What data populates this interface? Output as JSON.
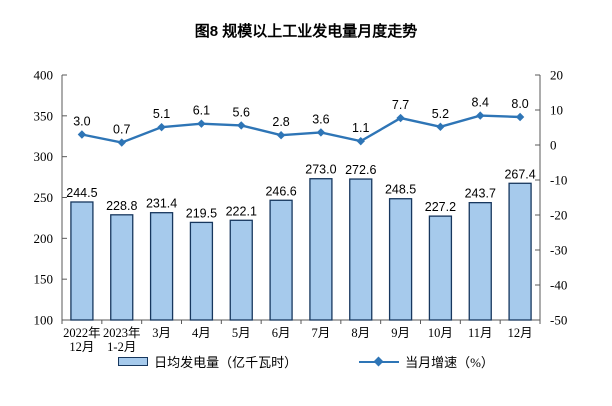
{
  "title": "图8 规模以上工业发电量月度走势",
  "chart_data": {
    "type": "combo-bar-line",
    "title": "图8 规模以上工业发电量月度走势",
    "categories": [
      "2022年\n12月",
      "2023年\n1-2月",
      "3月",
      "4月",
      "5月",
      "6月",
      "7月",
      "8月",
      "9月",
      "10月",
      "11月",
      "12月"
    ],
    "series": [
      {
        "name": "日均发电量（亿千瓦时）",
        "type": "bar",
        "axis": "left",
        "values": [
          244.5,
          228.8,
          231.4,
          219.5,
          222.1,
          246.6,
          273.0,
          272.6,
          248.5,
          227.2,
          243.7,
          267.4
        ]
      },
      {
        "name": "当月增速（%）",
        "type": "line",
        "axis": "right",
        "values": [
          3.0,
          0.7,
          5.1,
          6.1,
          5.6,
          2.8,
          3.6,
          1.1,
          7.7,
          5.2,
          8.4,
          8.0
        ]
      }
    ],
    "left_axis": {
      "min": 100,
      "max": 400,
      "step": 50,
      "ticks": [
        100,
        150,
        200,
        250,
        300,
        350,
        400
      ]
    },
    "right_axis": {
      "min": -50,
      "max": 20,
      "step": 10,
      "ticks": [
        -50,
        -40,
        -30,
        -20,
        -10,
        0,
        10,
        20
      ]
    },
    "legend_position": "bottom",
    "grid": false,
    "colors": {
      "bar_fill": "#A6CAEC",
      "bar_stroke": "#17375E",
      "line": "#2E75B6",
      "axis": "#595959",
      "text": "#000000",
      "background": "#FFFFFF"
    }
  }
}
